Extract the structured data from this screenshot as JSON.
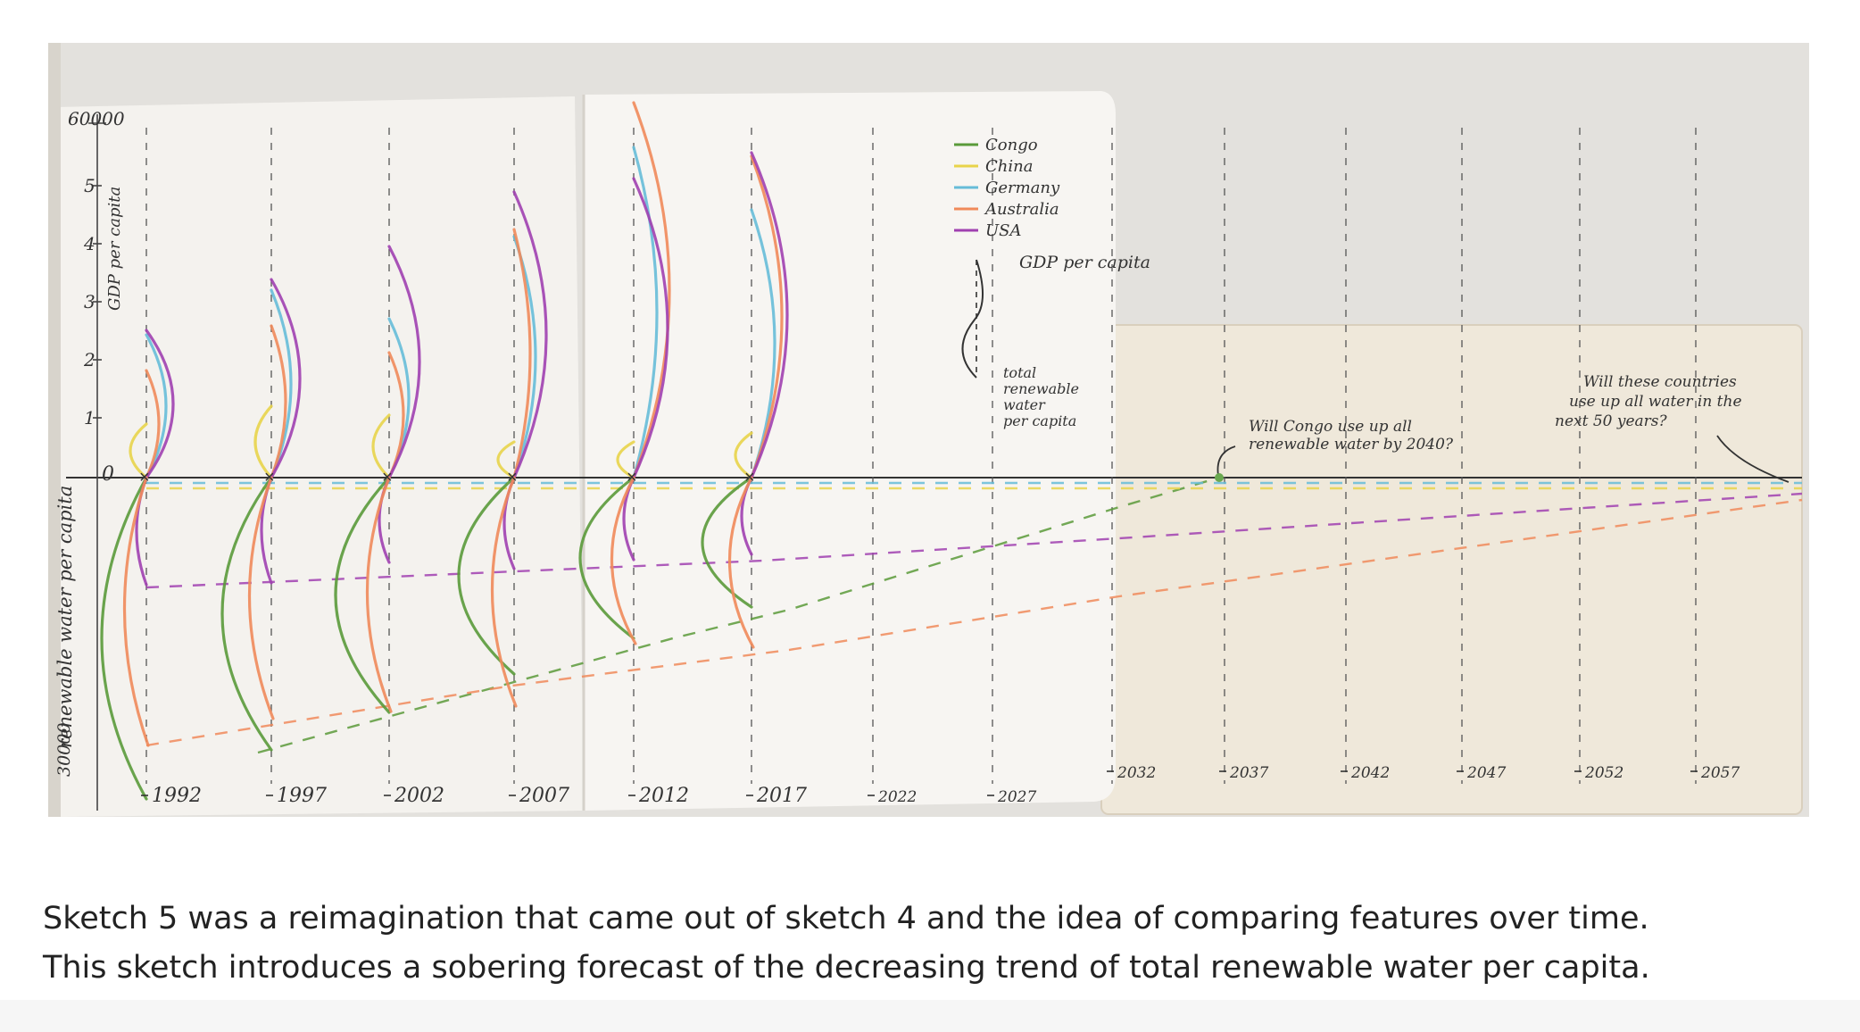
{
  "sketch": {
    "y_axis_top_ticks": [
      "5",
      "4",
      "3",
      "2",
      "1",
      "0"
    ],
    "y_axis_top_max": "60000",
    "y_axis_top_label": "GDP per capita",
    "y_axis_bottom_label": "renewable water per capita",
    "y_axis_bottom_min": "30000",
    "years_left_page": [
      "1992",
      "1997",
      "2002",
      "2007",
      "2012",
      "2017",
      "2022",
      "2027"
    ],
    "years_right_page": [
      "2032",
      "2037",
      "2042",
      "2047",
      "2052",
      "2057"
    ],
    "legend": [
      {
        "name": "Congo",
        "color": "#5a9a3a"
      },
      {
        "name": "China",
        "color": "#e8d44a"
      },
      {
        "name": "Germany",
        "color": "#66bcd8"
      },
      {
        "name": "Australia",
        "color": "#f08a5a"
      },
      {
        "name": "USA",
        "color": "#a040b0"
      }
    ],
    "key_top": "GDP per capita",
    "key_bottom_lines": [
      "total",
      "renewable",
      "water",
      "per capita"
    ],
    "note_congo_lines": [
      "Will Congo use up all",
      "renewable water by 2040?"
    ],
    "note_countries_lines": [
      "Will these countries",
      "use up all water in the",
      "next 50 years?"
    ]
  },
  "caption": {
    "line1": "Sketch 5 was a reimagination that came out of sketch 4 and the idea of comparing features over time.",
    "line2": "This sketch introduces a sobering forecast of the decreasing trend of total renewable water per capita."
  }
}
